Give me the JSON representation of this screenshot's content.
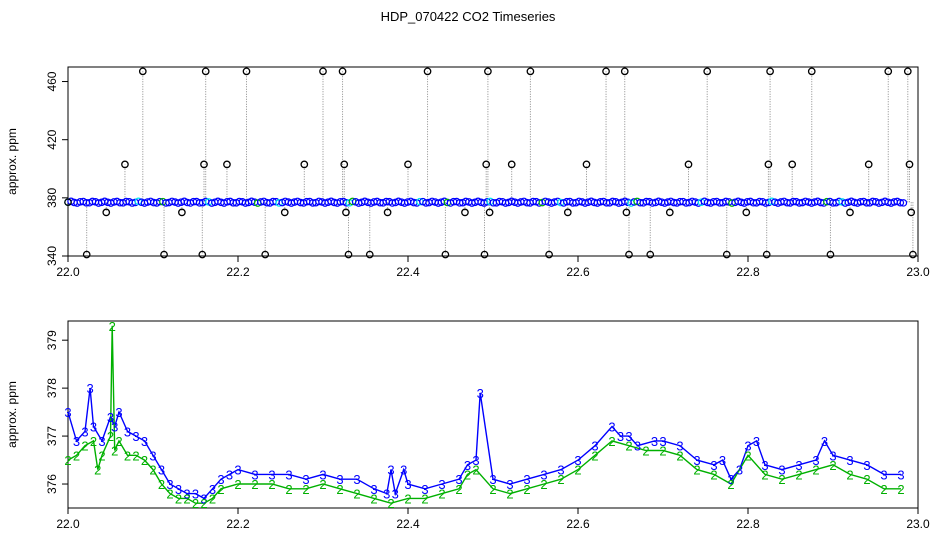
{
  "figure": {
    "title": "HDP_070422  CO2 Timeseries"
  },
  "colors": {
    "frame": "#000000",
    "series_blue": "#0000ff",
    "series_green": "#00b000",
    "series_cyan": "#00e5ee",
    "outlier_marker": "#000000",
    "outlier_line": "#8a8a8a"
  },
  "chart_data": [
    {
      "type": "scatter",
      "panel": "top",
      "title": "",
      "xlabel": "",
      "ylabel": "approx. ppm",
      "xlim": [
        22.0,
        23.0
      ],
      "ylim": [
        340,
        470
      ],
      "x_ticks": [
        22.0,
        22.2,
        22.4,
        22.6,
        22.8,
        23.0
      ],
      "x_tick_labels": [
        "22.0",
        "22.2",
        "22.4",
        "22.6",
        "22.8",
        "23.0"
      ],
      "y_ticks": [
        340,
        380,
        420,
        460
      ],
      "y_tick_labels": [
        "340",
        "380",
        "420",
        "460"
      ],
      "grid": false,
      "legend": "none",
      "baseline_series": {
        "name": "",
        "marker": "open circle",
        "x_start": 22.0,
        "x_end": 22.985,
        "value": 377
      },
      "outliers": [
        {
          "x": 22.0,
          "y": 377
        },
        {
          "x": 22.022,
          "y": 341
        },
        {
          "x": 22.045,
          "y": 370
        },
        {
          "x": 22.067,
          "y": 403
        },
        {
          "x": 22.088,
          "y": 467
        },
        {
          "x": 22.113,
          "y": 341
        },
        {
          "x": 22.134,
          "y": 370
        },
        {
          "x": 22.158,
          "y": 341
        },
        {
          "x": 22.16,
          "y": 403
        },
        {
          "x": 22.162,
          "y": 467
        },
        {
          "x": 22.187,
          "y": 403
        },
        {
          "x": 22.21,
          "y": 467
        },
        {
          "x": 22.232,
          "y": 341
        },
        {
          "x": 22.255,
          "y": 370
        },
        {
          "x": 22.278,
          "y": 403
        },
        {
          "x": 22.3,
          "y": 467
        },
        {
          "x": 22.323,
          "y": 467
        },
        {
          "x": 22.325,
          "y": 403
        },
        {
          "x": 22.327,
          "y": 370
        },
        {
          "x": 22.33,
          "y": 341
        },
        {
          "x": 22.355,
          "y": 341
        },
        {
          "x": 22.376,
          "y": 370
        },
        {
          "x": 22.4,
          "y": 403
        },
        {
          "x": 22.423,
          "y": 467
        },
        {
          "x": 22.444,
          "y": 341
        },
        {
          "x": 22.467,
          "y": 370
        },
        {
          "x": 22.49,
          "y": 341
        },
        {
          "x": 22.492,
          "y": 403
        },
        {
          "x": 22.494,
          "y": 467
        },
        {
          "x": 22.496,
          "y": 370
        },
        {
          "x": 22.522,
          "y": 403
        },
        {
          "x": 22.544,
          "y": 467
        },
        {
          "x": 22.566,
          "y": 341
        },
        {
          "x": 22.588,
          "y": 370
        },
        {
          "x": 22.61,
          "y": 403
        },
        {
          "x": 22.633,
          "y": 467
        },
        {
          "x": 22.655,
          "y": 467
        },
        {
          "x": 22.657,
          "y": 370
        },
        {
          "x": 22.66,
          "y": 341
        },
        {
          "x": 22.685,
          "y": 341
        },
        {
          "x": 22.708,
          "y": 370
        },
        {
          "x": 22.73,
          "y": 403
        },
        {
          "x": 22.752,
          "y": 467
        },
        {
          "x": 22.775,
          "y": 341
        },
        {
          "x": 22.798,
          "y": 370
        },
        {
          "x": 22.822,
          "y": 341
        },
        {
          "x": 22.824,
          "y": 403
        },
        {
          "x": 22.826,
          "y": 467
        },
        {
          "x": 22.852,
          "y": 403
        },
        {
          "x": 22.875,
          "y": 467
        },
        {
          "x": 22.897,
          "y": 341
        },
        {
          "x": 22.92,
          "y": 370
        },
        {
          "x": 22.942,
          "y": 403
        },
        {
          "x": 22.965,
          "y": 467
        },
        {
          "x": 22.988,
          "y": 467
        },
        {
          "x": 22.99,
          "y": 403
        },
        {
          "x": 22.992,
          "y": 370
        },
        {
          "x": 22.994,
          "y": 341
        }
      ]
    },
    {
      "type": "line",
      "panel": "bottom",
      "title": "",
      "xlabel": "",
      "ylabel": "approx. ppm",
      "xlim": [
        22.0,
        23.0
      ],
      "ylim": [
        375.5,
        379.4
      ],
      "x_ticks": [
        22.0,
        22.2,
        22.4,
        22.6,
        22.8,
        23.0
      ],
      "x_tick_labels": [
        "22.0",
        "22.2",
        "22.4",
        "22.6",
        "22.8",
        "23.0"
      ],
      "y_ticks": [
        376,
        377,
        378,
        379
      ],
      "y_tick_labels": [
        "376",
        "377",
        "378",
        "379"
      ],
      "grid": false,
      "legend": "none",
      "series": [
        {
          "name": "",
          "marker_label": "3",
          "color": "#0000ff",
          "x": [
            22.0,
            22.01,
            22.02,
            22.026,
            22.03,
            22.04,
            22.05,
            22.055,
            22.06,
            22.07,
            22.08,
            22.09,
            22.1,
            22.11,
            22.12,
            22.13,
            22.14,
            22.15,
            22.16,
            22.17,
            22.18,
            22.19,
            22.2,
            22.22,
            22.24,
            22.26,
            22.28,
            22.3,
            22.32,
            22.34,
            22.36,
            22.375,
            22.38,
            22.385,
            22.395,
            22.4,
            22.42,
            22.44,
            22.46,
            22.47,
            22.48,
            22.485,
            22.5,
            22.52,
            22.54,
            22.56,
            22.58,
            22.6,
            22.62,
            22.64,
            22.65,
            22.66,
            22.67,
            22.69,
            22.7,
            22.72,
            22.74,
            22.76,
            22.77,
            22.78,
            22.79,
            22.8,
            22.81,
            22.82,
            22.84,
            22.86,
            22.88,
            22.89,
            22.9,
            22.92,
            22.94,
            22.96,
            22.98
          ],
          "y": [
            377.5,
            376.9,
            377.1,
            378.0,
            377.2,
            376.9,
            377.4,
            377.2,
            377.5,
            377.1,
            377.0,
            376.9,
            376.6,
            376.3,
            376.0,
            375.9,
            375.8,
            375.8,
            375.7,
            375.9,
            376.1,
            376.2,
            376.3,
            376.2,
            376.2,
            376.2,
            376.1,
            376.2,
            376.1,
            376.1,
            375.9,
            375.8,
            376.3,
            375.8,
            376.3,
            376.0,
            375.9,
            376.0,
            376.1,
            376.4,
            376.5,
            377.9,
            376.1,
            376.0,
            376.1,
            376.2,
            376.3,
            376.5,
            376.8,
            377.2,
            377.0,
            377.0,
            376.8,
            376.9,
            376.9,
            376.8,
            376.5,
            376.4,
            376.5,
            376.1,
            376.3,
            376.8,
            376.9,
            376.4,
            376.3,
            376.4,
            376.5,
            376.9,
            376.6,
            376.5,
            376.4,
            376.2,
            376.2
          ]
        },
        {
          "name": "",
          "marker_label": "2",
          "color": "#00b000",
          "x": [
            22.0,
            22.01,
            22.02,
            22.03,
            22.035,
            22.04,
            22.05,
            22.052,
            22.055,
            22.06,
            22.07,
            22.08,
            22.09,
            22.1,
            22.11,
            22.12,
            22.13,
            22.14,
            22.15,
            22.16,
            22.17,
            22.18,
            22.2,
            22.22,
            22.24,
            22.26,
            22.28,
            22.3,
            22.32,
            22.34,
            22.36,
            22.38,
            22.4,
            22.42,
            22.44,
            22.46,
            22.47,
            22.48,
            22.5,
            22.52,
            22.54,
            22.56,
            22.58,
            22.6,
            22.62,
            22.64,
            22.66,
            22.68,
            22.7,
            22.72,
            22.74,
            22.76,
            22.78,
            22.8,
            22.82,
            22.84,
            22.86,
            22.88,
            22.9,
            22.92,
            22.94,
            22.96,
            22.98
          ],
          "y": [
            376.5,
            376.6,
            376.8,
            376.9,
            376.3,
            376.6,
            377.0,
            379.3,
            376.7,
            376.9,
            376.6,
            376.6,
            376.5,
            376.3,
            376.0,
            375.8,
            375.7,
            375.7,
            375.6,
            375.6,
            375.7,
            375.9,
            376.0,
            376.0,
            376.0,
            375.9,
            375.9,
            376.0,
            375.9,
            375.8,
            375.7,
            375.6,
            375.7,
            375.7,
            375.8,
            375.9,
            376.2,
            376.3,
            375.9,
            375.8,
            375.9,
            376.0,
            376.1,
            376.3,
            376.6,
            376.9,
            376.8,
            376.7,
            376.7,
            376.6,
            376.3,
            376.2,
            376.0,
            376.6,
            376.2,
            376.1,
            376.2,
            376.3,
            376.4,
            376.2,
            376.1,
            375.9,
            375.9
          ]
        }
      ]
    }
  ]
}
